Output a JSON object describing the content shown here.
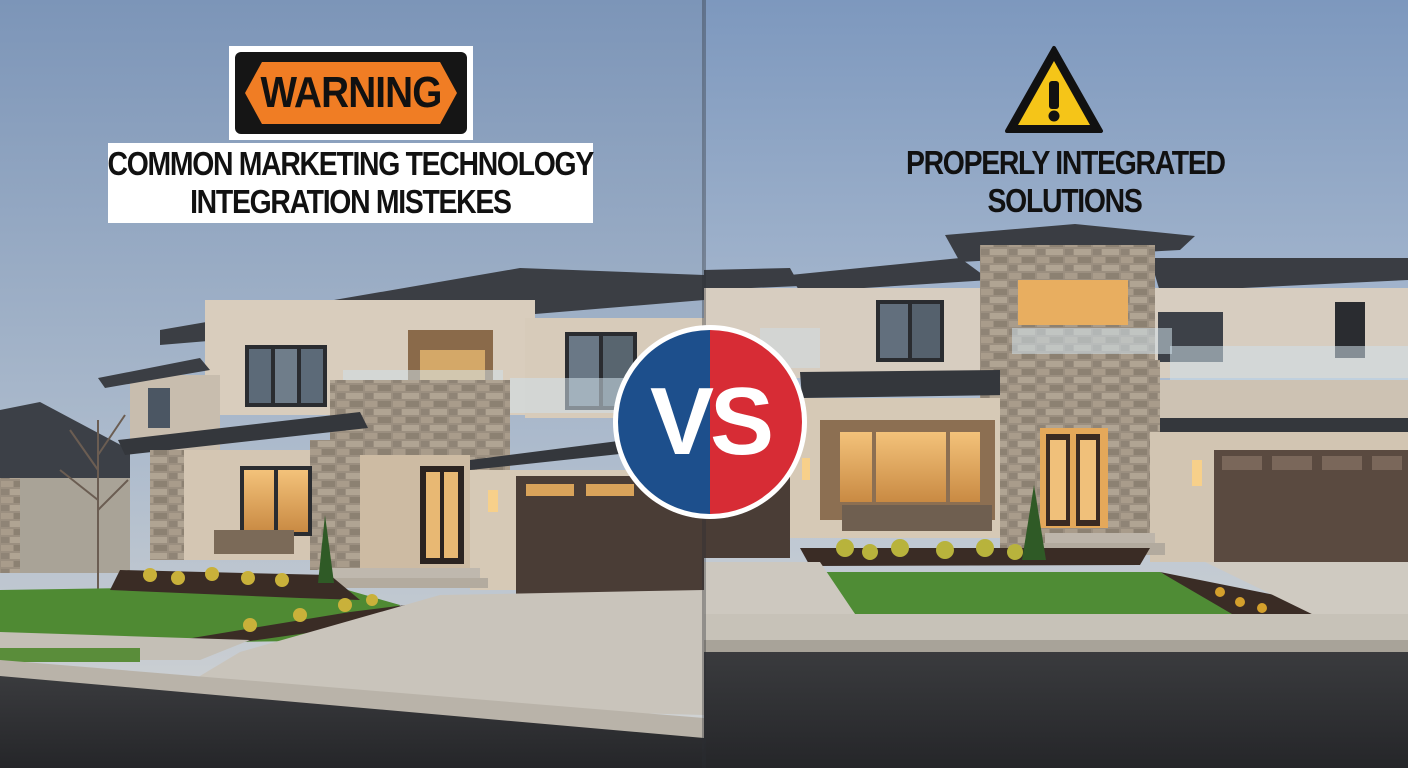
{
  "left_panel": {
    "sign_text": "WARNING",
    "caption_lines": [
      "COMMON MARKETING TECHNOLOGY",
      "INTEGRATION MISTEKES"
    ]
  },
  "right_panel": {
    "icon": "warning-triangle-icon",
    "caption_lines": [
      "PROPERLY INTEGRATED",
      "SOLUTIONS"
    ]
  },
  "badge": {
    "text": "VS",
    "colors": {
      "left": "#1d4f8c",
      "right": "#d72c35"
    }
  },
  "colors": {
    "warning_orange": "#f07d24",
    "hazard_yellow": "#f5c518",
    "sky_top": "#7f97b8",
    "sky_bottom": "#c7d0da"
  }
}
